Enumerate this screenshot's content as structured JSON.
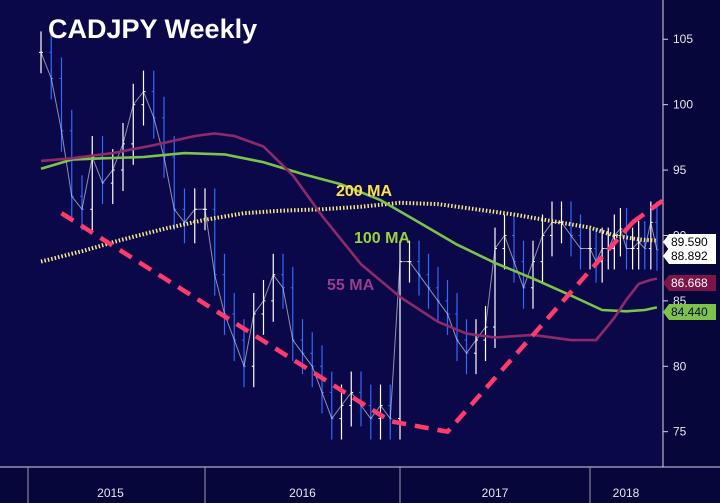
{
  "chart_data": {
    "type": "line",
    "title": "CADJPY Weekly",
    "x_ticks": [
      "2015",
      "2016",
      "2017",
      "2018"
    ],
    "y_ticks": [
      75,
      80,
      85,
      90,
      95,
      100,
      105
    ],
    "ylim": [
      72.3,
      108
    ],
    "grid": false,
    "price_badges": [
      {
        "label": "89.590",
        "bg": "#ffffff",
        "fg": "#000000"
      },
      {
        "label": "88.892",
        "bg": "#ffffff",
        "fg": "#000000"
      },
      {
        "label": "86.668",
        "bg": "#7e1548",
        "fg": "#ffffff"
      },
      {
        "label": "84.440",
        "bg": "#7dc34a",
        "fg": "#0a0848"
      }
    ],
    "ma_labels": [
      {
        "text": "200 MA",
        "color": "#ffe24a"
      },
      {
        "text": "100 MA",
        "color": "#9ad33a"
      },
      {
        "text": "55 MA",
        "color": "#9a3d8a"
      }
    ],
    "series": [
      {
        "name": "200 MA",
        "color": "#f6e68a",
        "style": "dotted",
        "x": [
          2014.2,
          2014.4,
          2014.6,
          2014.8,
          2015.0,
          2015.2,
          2015.4,
          2015.6,
          2015.8,
          2016.0,
          2016.2,
          2016.4,
          2016.6,
          2016.8,
          2017.0,
          2017.2,
          2017.4,
          2017.55
        ],
        "values": [
          88.0,
          88.8,
          89.7,
          90.5,
          91.2,
          91.7,
          91.9,
          92.0,
          92.2,
          92.5,
          92.4,
          92.0,
          91.6,
          91.1,
          90.6,
          90.0,
          89.7,
          89.6
        ]
      },
      {
        "name": "100 MA",
        "color": "#7dc34a",
        "style": "solid",
        "x": [
          2014.2,
          2014.35,
          2014.5,
          2014.7,
          2014.9,
          2015.1,
          2015.3,
          2015.5,
          2015.7,
          2015.9,
          2016.1,
          2016.3,
          2016.5,
          2016.7,
          2016.9,
          2017.1,
          2017.3,
          2017.45,
          2017.55
        ],
        "values": [
          95.1,
          95.8,
          95.9,
          96.0,
          96.3,
          96.2,
          95.6,
          94.7,
          93.9,
          92.7,
          91.0,
          89.3,
          87.9,
          86.7,
          85.4,
          84.3,
          84.2,
          84.3,
          84.5
        ]
      },
      {
        "name": "55 MA",
        "color": "#8e2a6a",
        "style": "solid",
        "x": [
          2014.2,
          2014.35,
          2014.55,
          2014.75,
          2014.95,
          2015.05,
          2015.15,
          2015.3,
          2015.45,
          2015.6,
          2015.8,
          2016.0,
          2016.2,
          2016.35,
          2016.5,
          2016.7,
          2016.9,
          2017.05,
          2017.2,
          2017.3,
          2017.4,
          2017.5,
          2017.55
        ],
        "values": [
          95.7,
          95.9,
          96.3,
          96.9,
          97.6,
          97.8,
          97.6,
          96.8,
          94.6,
          91.5,
          87.8,
          85.3,
          83.4,
          82.5,
          82.2,
          82.4,
          82.0,
          82.0,
          83.7,
          85.1,
          86.3,
          86.6,
          86.7
        ]
      },
      {
        "name": "",
        "color": "#ff3b6e",
        "style": "dashed",
        "x": [
          2014.3,
          2015.95,
          2016.25,
          2017.35
        ],
        "values": [
          91.7,
          75.8,
          75.0,
          91.0
        ]
      }
    ],
    "price": {
      "color": "#ffffff",
      "down_color": "#2f69ff",
      "x": [
        2014.2,
        2014.25,
        2014.3,
        2014.35,
        2014.4,
        2014.45,
        2014.5,
        2014.55,
        2014.6,
        2014.65,
        2014.7,
        2014.75,
        2014.8,
        2014.85,
        2014.9,
        2014.95,
        2015.0,
        2015.05,
        2015.1,
        2015.15,
        2015.2,
        2015.25,
        2015.3,
        2015.35,
        2015.4,
        2015.45,
        2015.5,
        2015.55,
        2015.6,
        2015.65,
        2015.7,
        2015.75,
        2015.8,
        2015.85,
        2015.9,
        2015.95,
        2016.0,
        2016.05,
        2016.1,
        2016.15,
        2016.2,
        2016.25,
        2016.3,
        2016.35,
        2016.4,
        2016.45,
        2016.5,
        2016.55,
        2016.6,
        2016.65,
        2016.7,
        2016.75,
        2016.8,
        2016.85,
        2016.9,
        2016.95,
        2017.0,
        2017.05,
        2017.1,
        2017.15,
        2017.2,
        2017.25,
        2017.3,
        2017.35,
        2017.4,
        2017.45,
        2017.5,
        2017.55
      ],
      "values": [
        104,
        102,
        98,
        93,
        92,
        96,
        94,
        95,
        97,
        100,
        101,
        99,
        96,
        92,
        91,
        92,
        92,
        87,
        84,
        82,
        80,
        84,
        85,
        87,
        86,
        82,
        81,
        80,
        78,
        76,
        77,
        78,
        77,
        76,
        77,
        76,
        88,
        88,
        87,
        86,
        85,
        84,
        82,
        81,
        82,
        83,
        89,
        90,
        88,
        86,
        88,
        90,
        91,
        91,
        90,
        89,
        89,
        88,
        89,
        89,
        90,
        90.5,
        89,
        89,
        89.5,
        89,
        91,
        88.9
      ]
    }
  }
}
